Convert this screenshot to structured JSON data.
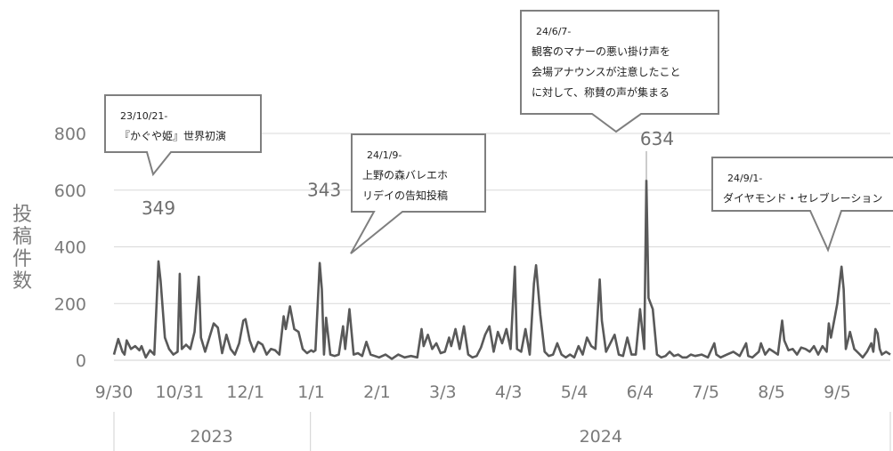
{
  "chart_data": {
    "type": "line",
    "ylabel": "投稿件数",
    "ylim": [
      0,
      900
    ],
    "yticks": [
      0,
      200,
      400,
      600,
      800
    ],
    "x_tick_labels": [
      {
        "label": "9/30",
        "date": "2023-09-30"
      },
      {
        "label": "10/31",
        "date": "2023-10-31"
      },
      {
        "label": "12/1",
        "date": "2023-12-01"
      },
      {
        "label": "1/1",
        "date": "2024-01-01"
      },
      {
        "label": "2/1",
        "date": "2024-02-01"
      },
      {
        "label": "3/3",
        "date": "2024-03-03"
      },
      {
        "label": "4/3",
        "date": "2024-04-03"
      },
      {
        "label": "5/4",
        "date": "2024-05-04"
      },
      {
        "label": "6/4",
        "date": "2024-06-04"
      },
      {
        "label": "7/5",
        "date": "2024-07-05"
      },
      {
        "label": "8/5",
        "date": "2024-08-05"
      },
      {
        "label": "9/5",
        "date": "2024-09-05"
      }
    ],
    "year_groups": [
      {
        "label": "2023",
        "start": "2023-09-30",
        "end": "2023-12-31"
      },
      {
        "label": "2024",
        "start": "2024-01-01",
        "end": "2024-09-30"
      }
    ],
    "x_start": "2023-09-30",
    "x_end": "2024-09-30",
    "series": [
      {
        "color": "#595959",
        "points": [
          [
            "2023-09-30",
            20
          ],
          [
            "2023-10-02",
            75
          ],
          [
            "2023-10-04",
            30
          ],
          [
            "2023-10-05",
            20
          ],
          [
            "2023-10-06",
            70
          ],
          [
            "2023-10-08",
            40
          ],
          [
            "2023-10-10",
            50
          ],
          [
            "2023-10-12",
            35
          ],
          [
            "2023-10-13",
            50
          ],
          [
            "2023-10-15",
            10
          ],
          [
            "2023-10-17",
            35
          ],
          [
            "2023-10-19",
            20
          ],
          [
            "2023-10-21",
            349
          ],
          [
            "2023-10-22",
            280
          ],
          [
            "2023-10-24",
            80
          ],
          [
            "2023-10-26",
            40
          ],
          [
            "2023-10-28",
            20
          ],
          [
            "2023-10-30",
            30
          ],
          [
            "2023-10-31",
            305
          ],
          [
            "2023-11-01",
            40
          ],
          [
            "2023-11-03",
            55
          ],
          [
            "2023-11-05",
            40
          ],
          [
            "2023-11-07",
            100
          ],
          [
            "2023-11-09",
            295
          ],
          [
            "2023-11-10",
            80
          ],
          [
            "2023-11-12",
            30
          ],
          [
            "2023-11-14",
            80
          ],
          [
            "2023-11-16",
            130
          ],
          [
            "2023-11-18",
            115
          ],
          [
            "2023-11-20",
            25
          ],
          [
            "2023-11-22",
            90
          ],
          [
            "2023-11-24",
            40
          ],
          [
            "2023-11-26",
            20
          ],
          [
            "2023-11-28",
            60
          ],
          [
            "2023-11-30",
            140
          ],
          [
            "2023-12-01",
            145
          ],
          [
            "2023-12-03",
            70
          ],
          [
            "2023-12-05",
            30
          ],
          [
            "2023-12-07",
            65
          ],
          [
            "2023-12-09",
            55
          ],
          [
            "2023-12-11",
            20
          ],
          [
            "2023-12-13",
            40
          ],
          [
            "2023-12-15",
            35
          ],
          [
            "2023-12-17",
            20
          ],
          [
            "2023-12-19",
            155
          ],
          [
            "2023-12-20",
            110
          ],
          [
            "2023-12-22",
            190
          ],
          [
            "2023-12-24",
            110
          ],
          [
            "2023-12-26",
            100
          ],
          [
            "2023-12-28",
            40
          ],
          [
            "2023-12-30",
            25
          ],
          [
            "2024-01-01",
            35
          ],
          [
            "2024-01-02",
            30
          ],
          [
            "2024-01-03",
            35
          ],
          [
            "2024-01-05",
            343
          ],
          [
            "2024-01-06",
            250
          ],
          [
            "2024-01-07",
            20
          ],
          [
            "2024-01-08",
            150
          ],
          [
            "2024-01-10",
            20
          ],
          [
            "2024-01-12",
            15
          ],
          [
            "2024-01-14",
            20
          ],
          [
            "2024-01-16",
            120
          ],
          [
            "2024-01-17",
            40
          ],
          [
            "2024-01-19",
            180
          ],
          [
            "2024-01-21",
            20
          ],
          [
            "2024-01-23",
            25
          ],
          [
            "2024-01-25",
            15
          ],
          [
            "2024-01-27",
            65
          ],
          [
            "2024-01-29",
            20
          ],
          [
            "2024-01-31",
            15
          ],
          [
            "2024-02-02",
            10
          ],
          [
            "2024-02-05",
            20
          ],
          [
            "2024-02-08",
            5
          ],
          [
            "2024-02-11",
            20
          ],
          [
            "2024-02-14",
            10
          ],
          [
            "2024-02-17",
            15
          ],
          [
            "2024-02-20",
            10
          ],
          [
            "2024-02-22",
            110
          ],
          [
            "2024-02-23",
            50
          ],
          [
            "2024-02-25",
            90
          ],
          [
            "2024-02-27",
            40
          ],
          [
            "2024-02-29",
            60
          ],
          [
            "2024-03-02",
            25
          ],
          [
            "2024-03-04",
            30
          ],
          [
            "2024-03-06",
            80
          ],
          [
            "2024-03-07",
            50
          ],
          [
            "2024-03-09",
            110
          ],
          [
            "2024-03-11",
            40
          ],
          [
            "2024-03-13",
            120
          ],
          [
            "2024-03-15",
            20
          ],
          [
            "2024-03-17",
            10
          ],
          [
            "2024-03-19",
            15
          ],
          [
            "2024-03-21",
            45
          ],
          [
            "2024-03-23",
            90
          ],
          [
            "2024-03-25",
            120
          ],
          [
            "2024-03-27",
            30
          ],
          [
            "2024-03-29",
            100
          ],
          [
            "2024-03-31",
            60
          ],
          [
            "2024-04-02",
            110
          ],
          [
            "2024-04-04",
            40
          ],
          [
            "2024-04-06",
            330
          ],
          [
            "2024-04-07",
            40
          ],
          [
            "2024-04-09",
            30
          ],
          [
            "2024-04-11",
            110
          ],
          [
            "2024-04-13",
            20
          ],
          [
            "2024-04-15",
            270
          ],
          [
            "2024-04-16",
            335
          ],
          [
            "2024-04-18",
            160
          ],
          [
            "2024-04-20",
            30
          ],
          [
            "2024-04-22",
            15
          ],
          [
            "2024-04-24",
            20
          ],
          [
            "2024-04-26",
            60
          ],
          [
            "2024-04-28",
            20
          ],
          [
            "2024-04-30",
            10
          ],
          [
            "2024-05-02",
            20
          ],
          [
            "2024-05-04",
            10
          ],
          [
            "2024-05-06",
            50
          ],
          [
            "2024-05-08",
            20
          ],
          [
            "2024-05-10",
            80
          ],
          [
            "2024-05-12",
            50
          ],
          [
            "2024-05-14",
            40
          ],
          [
            "2024-05-16",
            285
          ],
          [
            "2024-05-17",
            140
          ],
          [
            "2024-05-19",
            30
          ],
          [
            "2024-05-21",
            60
          ],
          [
            "2024-05-23",
            90
          ],
          [
            "2024-05-25",
            20
          ],
          [
            "2024-05-27",
            15
          ],
          [
            "2024-05-29",
            80
          ],
          [
            "2024-05-31",
            20
          ],
          [
            "2024-06-02",
            20
          ],
          [
            "2024-06-04",
            180
          ],
          [
            "2024-06-06",
            40
          ],
          [
            "2024-06-07",
            634
          ],
          [
            "2024-06-08",
            220
          ],
          [
            "2024-06-10",
            180
          ],
          [
            "2024-06-12",
            20
          ],
          [
            "2024-06-14",
            10
          ],
          [
            "2024-06-16",
            15
          ],
          [
            "2024-06-18",
            30
          ],
          [
            "2024-06-20",
            15
          ],
          [
            "2024-06-22",
            20
          ],
          [
            "2024-06-24",
            10
          ],
          [
            "2024-06-26",
            10
          ],
          [
            "2024-06-28",
            20
          ],
          [
            "2024-06-30",
            15
          ],
          [
            "2024-07-03",
            20
          ],
          [
            "2024-07-06",
            10
          ],
          [
            "2024-07-09",
            60
          ],
          [
            "2024-07-10",
            20
          ],
          [
            "2024-07-12",
            10
          ],
          [
            "2024-07-15",
            20
          ],
          [
            "2024-07-18",
            30
          ],
          [
            "2024-07-21",
            15
          ],
          [
            "2024-07-24",
            60
          ],
          [
            "2024-07-25",
            15
          ],
          [
            "2024-07-27",
            10
          ],
          [
            "2024-07-30",
            30
          ],
          [
            "2024-07-31",
            60
          ],
          [
            "2024-08-02",
            20
          ],
          [
            "2024-08-04",
            40
          ],
          [
            "2024-08-06",
            30
          ],
          [
            "2024-08-08",
            20
          ],
          [
            "2024-08-10",
            140
          ],
          [
            "2024-08-11",
            70
          ],
          [
            "2024-08-13",
            35
          ],
          [
            "2024-08-15",
            40
          ],
          [
            "2024-08-17",
            20
          ],
          [
            "2024-08-19",
            45
          ],
          [
            "2024-08-21",
            40
          ],
          [
            "2024-08-23",
            30
          ],
          [
            "2024-08-25",
            50
          ],
          [
            "2024-08-27",
            20
          ],
          [
            "2024-08-29",
            50
          ],
          [
            "2024-08-31",
            30
          ],
          [
            "2024-09-01",
            130
          ],
          [
            "2024-09-02",
            80
          ],
          [
            "2024-09-04",
            160
          ],
          [
            "2024-09-05",
            200
          ],
          [
            "2024-09-07",
            330
          ],
          [
            "2024-09-08",
            250
          ],
          [
            "2024-09-09",
            40
          ],
          [
            "2024-09-11",
            100
          ],
          [
            "2024-09-13",
            40
          ],
          [
            "2024-09-15",
            25
          ],
          [
            "2024-09-17",
            10
          ],
          [
            "2024-09-19",
            30
          ],
          [
            "2024-09-21",
            60
          ],
          [
            "2024-09-22",
            30
          ],
          [
            "2024-09-23",
            110
          ],
          [
            "2024-09-24",
            95
          ],
          [
            "2024-09-25",
            40
          ],
          [
            "2024-09-26",
            20
          ],
          [
            "2024-09-28",
            30
          ],
          [
            "2024-09-30",
            20
          ]
        ]
      }
    ],
    "peak_labels": [
      {
        "text": "349",
        "date": "2023-10-21",
        "value": 349
      },
      {
        "text": "343",
        "date": "2024-01-05",
        "value": 343
      },
      {
        "text": "634",
        "date": "2024-06-07",
        "value": 634
      }
    ],
    "annotations": [
      {
        "date_line": "23/10/21-",
        "lines": [
          "『かぐや姫』世界初演"
        ]
      },
      {
        "date_line": "24/1/9-",
        "lines": [
          "上野の森バレエホ",
          "リデイの告知投稿"
        ]
      },
      {
        "date_line": "24/6/7-",
        "lines": [
          "観客のマナーの悪い掛け声を",
          "会場アナウンスが注意したこと",
          "に対して、称賛の声が集まる"
        ]
      },
      {
        "date_line": "24/9/1-",
        "lines": [
          "ダイヤモンド・セレブレーション"
        ]
      }
    ],
    "grid": true
  }
}
